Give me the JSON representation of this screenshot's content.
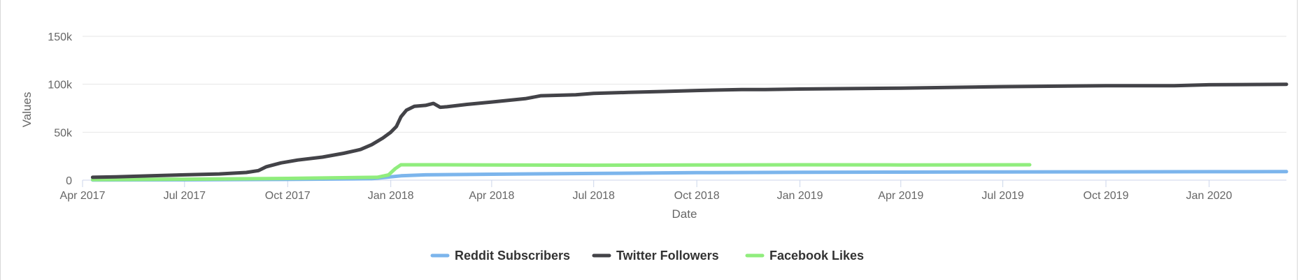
{
  "chart_data": {
    "type": "line",
    "xlabel": "Date",
    "ylabel": "Values",
    "xlim": [
      "2017-04-01",
      "2020-03-10"
    ],
    "ylim": [
      0,
      150000
    ],
    "x_ticks": [
      {
        "date": "2017-04-01",
        "label": "Apr 2017"
      },
      {
        "date": "2017-07-01",
        "label": "Jul 2017"
      },
      {
        "date": "2017-10-01",
        "label": "Oct 2017"
      },
      {
        "date": "2018-01-01",
        "label": "Jan 2018"
      },
      {
        "date": "2018-04-01",
        "label": "Apr 2018"
      },
      {
        "date": "2018-07-01",
        "label": "Jul 2018"
      },
      {
        "date": "2018-10-01",
        "label": "Oct 2018"
      },
      {
        "date": "2019-01-01",
        "label": "Jan 2019"
      },
      {
        "date": "2019-04-01",
        "label": "Apr 2019"
      },
      {
        "date": "2019-07-01",
        "label": "Jul 2019"
      },
      {
        "date": "2019-10-01",
        "label": "Oct 2019"
      },
      {
        "date": "2020-01-01",
        "label": "Jan 2020"
      }
    ],
    "y_ticks": [
      {
        "value": 0,
        "label": "0"
      },
      {
        "value": 50000,
        "label": "50k"
      },
      {
        "value": 100000,
        "label": "100k"
      },
      {
        "value": 150000,
        "label": "150k"
      }
    ],
    "grid": true,
    "legend_position": "bottom-center",
    "series": [
      {
        "name": "Reddit Subscribers",
        "color": "#7cb5ec",
        "points": [
          [
            "2017-04-10",
            200
          ],
          [
            "2017-07-01",
            400
          ],
          [
            "2017-10-01",
            800
          ],
          [
            "2017-12-15",
            1500
          ],
          [
            "2017-12-28",
            3000
          ],
          [
            "2018-01-10",
            4500
          ],
          [
            "2018-02-01",
            5500
          ],
          [
            "2018-04-01",
            6200
          ],
          [
            "2018-07-01",
            7000
          ],
          [
            "2018-10-01",
            7800
          ],
          [
            "2019-01-01",
            8200
          ],
          [
            "2019-04-01",
            8400
          ],
          [
            "2019-07-01",
            8600
          ],
          [
            "2019-10-01",
            8700
          ],
          [
            "2020-01-01",
            8800
          ],
          [
            "2020-03-10",
            8900
          ]
        ]
      },
      {
        "name": "Twitter Followers",
        "color": "#434348",
        "points": [
          [
            "2017-04-10",
            3000
          ],
          [
            "2017-05-01",
            3500
          ],
          [
            "2017-06-01",
            4500
          ],
          [
            "2017-07-01",
            5500
          ],
          [
            "2017-08-01",
            6500
          ],
          [
            "2017-08-25",
            8000
          ],
          [
            "2017-09-05",
            10000
          ],
          [
            "2017-09-12",
            14000
          ],
          [
            "2017-09-25",
            18000
          ],
          [
            "2017-10-10",
            21000
          ],
          [
            "2017-11-01",
            24000
          ],
          [
            "2017-11-20",
            28000
          ],
          [
            "2017-12-05",
            32000
          ],
          [
            "2017-12-15",
            37000
          ],
          [
            "2017-12-25",
            44000
          ],
          [
            "2018-01-01",
            50000
          ],
          [
            "2018-01-06",
            56000
          ],
          [
            "2018-01-10",
            66000
          ],
          [
            "2018-01-15",
            73000
          ],
          [
            "2018-01-22",
            77000
          ],
          [
            "2018-02-01",
            78000
          ],
          [
            "2018-02-08",
            80000
          ],
          [
            "2018-02-14",
            76000
          ],
          [
            "2018-02-20",
            76500
          ],
          [
            "2018-03-10",
            79000
          ],
          [
            "2018-04-01",
            81500
          ],
          [
            "2018-05-01",
            85000
          ],
          [
            "2018-05-15",
            88000
          ],
          [
            "2018-06-15",
            89000
          ],
          [
            "2018-07-01",
            90500
          ],
          [
            "2018-08-01",
            91500
          ],
          [
            "2018-09-01",
            92500
          ],
          [
            "2018-10-01",
            93500
          ],
          [
            "2018-11-10",
            94500
          ],
          [
            "2018-12-01",
            94500
          ],
          [
            "2019-01-01",
            95000
          ],
          [
            "2019-04-01",
            96000
          ],
          [
            "2019-07-01",
            97500
          ],
          [
            "2019-10-01",
            98500
          ],
          [
            "2019-12-01",
            98500
          ],
          [
            "2020-01-01",
            99500
          ],
          [
            "2020-03-10",
            100000
          ]
        ]
      },
      {
        "name": "Facebook Likes",
        "color": "#90ed7d",
        "points": [
          [
            "2017-04-10",
            500
          ],
          [
            "2017-07-01",
            1000
          ],
          [
            "2017-10-01",
            1800
          ],
          [
            "2017-12-20",
            3000
          ],
          [
            "2017-12-30",
            5500
          ],
          [
            "2018-01-05",
            12000
          ],
          [
            "2018-01-10",
            16000
          ],
          [
            "2018-02-15",
            16000
          ],
          [
            "2018-04-01",
            15800
          ],
          [
            "2018-07-01",
            15600
          ],
          [
            "2018-10-01",
            15800
          ],
          [
            "2019-01-01",
            16000
          ],
          [
            "2019-04-01",
            15900
          ],
          [
            "2019-07-25",
            16000
          ]
        ]
      }
    ]
  }
}
